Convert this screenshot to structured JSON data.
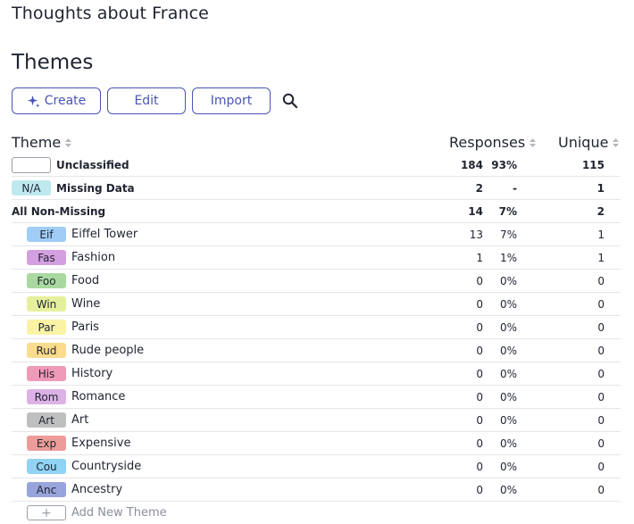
{
  "header": {
    "doc_title": "Thoughts about France",
    "section_title": "Themes"
  },
  "toolbar": {
    "create_label": "Create",
    "edit_label": "Edit",
    "import_label": "Import",
    "accent": "#4a55b5"
  },
  "columns": {
    "theme": "Theme",
    "responses": "Responses",
    "unique": "Unique"
  },
  "summary_rows": [
    {
      "tag": "",
      "label": "Unclassified",
      "responses": "184",
      "pct": "93%",
      "unique": "115"
    },
    {
      "tag": "N/A",
      "label": "Missing Data",
      "responses": "2",
      "pct": "-",
      "unique": "1",
      "color": "#bfe8ef"
    },
    {
      "tag": "",
      "label": "All Non-Missing",
      "responses": "14",
      "pct": "7%",
      "unique": "2"
    }
  ],
  "themes": [
    {
      "tag": "Eif",
      "label": "Eiffel Tower",
      "responses": "13",
      "pct": "7%",
      "unique": "1",
      "color": "#9fcdf6"
    },
    {
      "tag": "Fas",
      "label": "Fashion",
      "responses": "1",
      "pct": "1%",
      "unique": "1",
      "color": "#d49fe0"
    },
    {
      "tag": "Foo",
      "label": "Food",
      "responses": "0",
      "pct": "0%",
      "unique": "0",
      "color": "#a9d9a0"
    },
    {
      "tag": "Win",
      "label": "Wine",
      "responses": "0",
      "pct": "0%",
      "unique": "0",
      "color": "#e6f09c"
    },
    {
      "tag": "Par",
      "label": "Paris",
      "responses": "0",
      "pct": "0%",
      "unique": "0",
      "color": "#faf3a6"
    },
    {
      "tag": "Rud",
      "label": "Rude people",
      "responses": "0",
      "pct": "0%",
      "unique": "0",
      "color": "#fbdc8c"
    },
    {
      "tag": "His",
      "label": "History",
      "responses": "0",
      "pct": "0%",
      "unique": "0",
      "color": "#ef9ab8"
    },
    {
      "tag": "Rom",
      "label": "Romance",
      "responses": "0",
      "pct": "0%",
      "unique": "0",
      "color": "#dcb2e6"
    },
    {
      "tag": "Art",
      "label": "Art",
      "responses": "0",
      "pct": "0%",
      "unique": "0",
      "color": "#bfbfbf"
    },
    {
      "tag": "Exp",
      "label": "Expensive",
      "responses": "0",
      "pct": "0%",
      "unique": "0",
      "color": "#ec9c99"
    },
    {
      "tag": "Cou",
      "label": "Countryside",
      "responses": "0",
      "pct": "0%",
      "unique": "0",
      "color": "#90d3f4"
    },
    {
      "tag": "Anc",
      "label": "Ancestry",
      "responses": "0",
      "pct": "0%",
      "unique": "0",
      "color": "#98a4dc"
    }
  ],
  "add_theme": {
    "tag": "+",
    "label": "Add New Theme"
  }
}
